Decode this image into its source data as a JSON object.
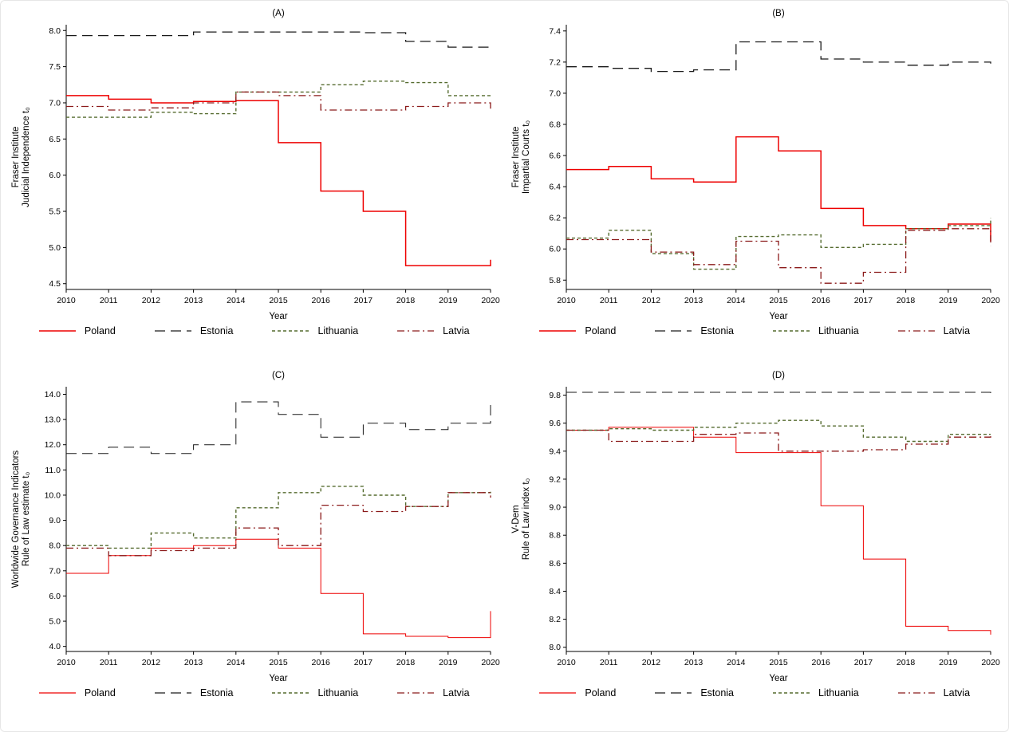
{
  "figure": {
    "background": "#ffffff",
    "xlabel": "Year"
  },
  "series_styles": {
    "poland_color": "#ee0000",
    "estonia_color": "#1a1a1a",
    "lithuania_color": "#556b2f",
    "latvia_color": "#8b1a1a"
  },
  "chart_data": [
    {
      "id": "A",
      "type": "line",
      "subtype": "step",
      "title": "(A)",
      "ylabel_lines": [
        "Fraser Institute",
        "Judicial Independence t₀"
      ],
      "xlabel": "Year",
      "x": [
        2010,
        2011,
        2012,
        2013,
        2014,
        2015,
        2016,
        2017,
        2018,
        2019,
        2020
      ],
      "ylim": [
        4.42,
        8.08
      ],
      "yticks": [
        4.5,
        5.0,
        5.5,
        6.0,
        6.5,
        7.0,
        7.5,
        8.0
      ],
      "grid": false,
      "legend_position": "bottom",
      "series": [
        {
          "name": "Poland",
          "color": "#ee0000",
          "dash": "solid",
          "width": 1.5,
          "values": [
            7.1,
            7.05,
            7.0,
            7.02,
            7.03,
            6.45,
            5.78,
            5.5,
            4.75,
            4.75,
            4.83
          ]
        },
        {
          "name": "Estonia",
          "color": "#1a1a1a",
          "dash": "longdash",
          "width": 1.3,
          "values": [
            7.93,
            7.93,
            7.93,
            7.98,
            7.98,
            7.98,
            7.98,
            7.97,
            7.85,
            7.77,
            7.75
          ]
        },
        {
          "name": "Lithuania",
          "color": "#556b2f",
          "dash": "shortdash",
          "width": 1.4,
          "values": [
            6.8,
            6.8,
            6.87,
            6.85,
            7.15,
            7.15,
            7.25,
            7.3,
            7.28,
            7.1,
            7.1
          ]
        },
        {
          "name": "Latvia",
          "color": "#8b1a1a",
          "dash": "dashdot",
          "width": 1.3,
          "values": [
            6.95,
            6.9,
            6.93,
            7.0,
            7.15,
            7.1,
            6.9,
            6.9,
            6.95,
            7.0,
            6.88
          ]
        }
      ]
    },
    {
      "id": "B",
      "type": "line",
      "subtype": "step",
      "title": "(B)",
      "ylabel_lines": [
        "Fraser Institute",
        "Impartial Courts t₀"
      ],
      "xlabel": "Year",
      "x": [
        2010,
        2011,
        2012,
        2013,
        2014,
        2015,
        2016,
        2017,
        2018,
        2019,
        2020
      ],
      "ylim": [
        5.74,
        7.44
      ],
      "yticks": [
        5.8,
        6.0,
        6.2,
        6.4,
        6.6,
        6.8,
        7.0,
        7.2,
        7.4
      ],
      "grid": false,
      "legend_position": "bottom",
      "series": [
        {
          "name": "Poland",
          "color": "#ee0000",
          "dash": "solid",
          "width": 1.5,
          "values": [
            6.51,
            6.53,
            6.45,
            6.43,
            6.72,
            6.63,
            6.26,
            6.15,
            6.13,
            6.16,
            6.05
          ]
        },
        {
          "name": "Estonia",
          "color": "#1a1a1a",
          "dash": "longdash",
          "width": 1.3,
          "values": [
            7.17,
            7.16,
            7.14,
            7.15,
            7.33,
            7.33,
            7.22,
            7.2,
            7.18,
            7.2,
            7.19
          ]
        },
        {
          "name": "Lithuania",
          "color": "#556b2f",
          "dash": "shortdash",
          "width": 1.4,
          "values": [
            6.07,
            6.12,
            5.97,
            5.87,
            6.08,
            6.09,
            6.01,
            6.03,
            6.13,
            6.15,
            6.2
          ]
        },
        {
          "name": "Latvia",
          "color": "#8b1a1a",
          "dash": "dashdot",
          "width": 1.3,
          "values": [
            6.06,
            6.06,
            5.98,
            5.9,
            6.05,
            5.88,
            5.78,
            5.85,
            6.12,
            6.13,
            6.02
          ]
        }
      ]
    },
    {
      "id": "C",
      "type": "line",
      "subtype": "step",
      "title": "(C)",
      "ylabel_lines": [
        "Worldwide Governance Indicators",
        "Rule of Law estimate t₀"
      ],
      "xlabel": "Year",
      "x": [
        2010,
        2011,
        2012,
        2013,
        2014,
        2015,
        2016,
        2017,
        2018,
        2019,
        2020
      ],
      "ylim": [
        3.8,
        14.3
      ],
      "yticks": [
        4.0,
        5.0,
        6.0,
        7.0,
        8.0,
        9.0,
        10.0,
        11.0,
        12.0,
        13.0,
        14.0
      ],
      "grid": false,
      "legend_position": "bottom",
      "series": [
        {
          "name": "Poland",
          "color": "#ee0000",
          "dash": "solid",
          "width": 1.0,
          "values": [
            6.9,
            7.6,
            7.9,
            8.0,
            8.25,
            7.9,
            6.1,
            4.5,
            4.4,
            4.35,
            5.4
          ]
        },
        {
          "name": "Estonia",
          "color": "#1a1a1a",
          "dash": "longdash",
          "width": 1.0,
          "values": [
            11.65,
            11.9,
            11.65,
            12.0,
            13.7,
            13.2,
            12.3,
            12.85,
            12.6,
            12.85,
            13.6
          ]
        },
        {
          "name": "Lithuania",
          "color": "#556b2f",
          "dash": "shortdash",
          "width": 1.4,
          "values": [
            8.0,
            7.9,
            8.5,
            8.3,
            9.5,
            10.1,
            10.35,
            10.0,
            9.55,
            10.1,
            10.2
          ]
        },
        {
          "name": "Latvia",
          "color": "#8b1a1a",
          "dash": "dashdot",
          "width": 1.3,
          "values": [
            7.9,
            7.6,
            7.8,
            7.9,
            8.7,
            8.0,
            9.6,
            9.35,
            9.55,
            10.1,
            9.9
          ]
        }
      ]
    },
    {
      "id": "D",
      "type": "line",
      "subtype": "step",
      "title": "(D)",
      "ylabel_lines": [
        "V-Dem",
        "Rule of Law index t₀"
      ],
      "xlabel": "Year",
      "x": [
        2010,
        2011,
        2012,
        2013,
        2014,
        2015,
        2016,
        2017,
        2018,
        2019,
        2020
      ],
      "ylim": [
        7.97,
        9.86
      ],
      "yticks": [
        8.0,
        8.2,
        8.4,
        8.6,
        8.8,
        9.0,
        9.2,
        9.4,
        9.6,
        9.8
      ],
      "grid": false,
      "legend_position": "bottom",
      "series": [
        {
          "name": "Poland",
          "color": "#ee0000",
          "dash": "solid",
          "width": 1.0,
          "values": [
            9.55,
            9.57,
            9.57,
            9.5,
            9.39,
            9.39,
            9.01,
            8.63,
            8.15,
            8.12,
            8.09
          ]
        },
        {
          "name": "Estonia",
          "color": "#1a1a1a",
          "dash": "longdash",
          "width": 1.0,
          "values": [
            9.82,
            9.82,
            9.82,
            9.82,
            9.82,
            9.82,
            9.82,
            9.82,
            9.82,
            9.82,
            9.8
          ]
        },
        {
          "name": "Lithuania",
          "color": "#556b2f",
          "dash": "shortdash",
          "width": 1.4,
          "values": [
            9.55,
            9.56,
            9.55,
            9.57,
            9.6,
            9.62,
            9.58,
            9.5,
            9.47,
            9.52,
            9.52
          ]
        },
        {
          "name": "Latvia",
          "color": "#8b1a1a",
          "dash": "dashdot",
          "width": 1.3,
          "values": [
            9.55,
            9.47,
            9.47,
            9.52,
            9.53,
            9.4,
            9.4,
            9.41,
            9.45,
            9.5,
            9.51
          ]
        }
      ]
    }
  ]
}
